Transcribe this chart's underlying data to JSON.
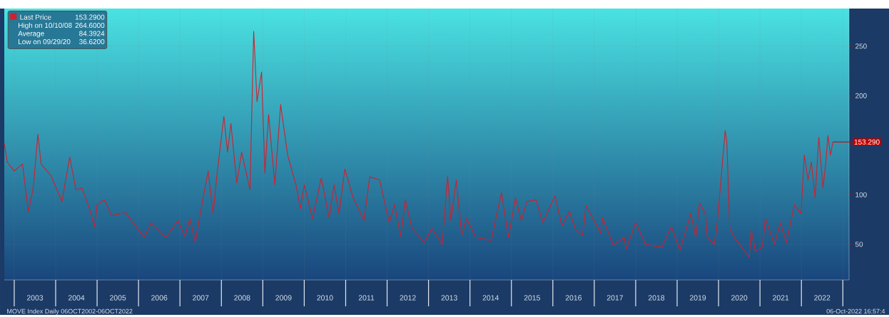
{
  "chart_data": {
    "type": "line",
    "series": [
      {
        "name": "Last Price",
        "color": "#d0202e",
        "x": [
          2002.76,
          2002.83,
          2003.0,
          2003.2,
          2003.34,
          2003.46,
          2003.57,
          2003.65,
          2003.89,
          2004.15,
          2004.34,
          2004.49,
          2004.63,
          2004.8,
          2004.94,
          2005.0,
          2005.18,
          2005.35,
          2005.69,
          2005.97,
          2006.14,
          2006.31,
          2006.66,
          2006.95,
          2007.12,
          2007.24,
          2007.37,
          2007.49,
          2007.68,
          2007.8,
          2007.89,
          2008.06,
          2008.15,
          2008.23,
          2008.37,
          2008.49,
          2008.69,
          2008.78,
          2008.86,
          2008.97,
          2009.05,
          2009.14,
          2009.29,
          2009.43,
          2009.6,
          2009.8,
          2009.91,
          2010.0,
          2010.2,
          2010.41,
          2010.6,
          2010.72,
          2010.84,
          2010.98,
          2011.18,
          2011.44,
          2011.58,
          2011.82,
          2012.05,
          2012.18,
          2012.33,
          2012.44,
          2012.6,
          2012.9,
          2013.08,
          2013.33,
          2013.46,
          2013.54,
          2013.67,
          2013.8,
          2013.92,
          2014.14,
          2014.51,
          2014.76,
          2014.93,
          2015.1,
          2015.24,
          2015.37,
          2015.59,
          2015.76,
          2016.05,
          2016.22,
          2016.4,
          2016.55,
          2016.72,
          2016.8,
          2016.97,
          2017.16,
          2017.2,
          2017.46,
          2017.72,
          2017.77,
          2018.0,
          2018.24,
          2018.63,
          2018.86,
          2019.07,
          2019.33,
          2019.45,
          2019.54,
          2019.68,
          2019.73,
          2019.9,
          2019.97,
          2020.16,
          2020.2,
          2020.27,
          2020.38,
          2020.74,
          2020.79,
          2020.89,
          2021.06,
          2021.13,
          2021.35,
          2021.49,
          2021.64,
          2021.83,
          2021.99,
          2022.07,
          2022.16,
          2022.24,
          2022.33,
          2022.42,
          2022.52,
          2022.59,
          2022.64,
          2022.7,
          2022.76
        ],
        "values": [
          152,
          133,
          124,
          131,
          83,
          107,
          161,
          131,
          119,
          93,
          138,
          105,
          107,
          88,
          68,
          90,
          95,
          79,
          82,
          66,
          57,
          72,
          57,
          74,
          58,
          76,
          52,
          81,
          124,
          81,
          119,
          179,
          143,
          172,
          112,
          143,
          105,
          265,
          194,
          224,
          122,
          181,
          110,
          191,
          140,
          110,
          86,
          110,
          76,
          117,
          77,
          110,
          81,
          126,
          97,
          74,
          118,
          115,
          72,
          90,
          58,
          95,
          66,
          52,
          66,
          50,
          119,
          74,
          115,
          59,
          76,
          57,
          54,
          102,
          57,
          97,
          74,
          93,
          95,
          72,
          99,
          69,
          83,
          65,
          59,
          89,
          76,
          61,
          77,
          49,
          57,
          45,
          72,
          50,
          47,
          68,
          44,
          81,
          57,
          92,
          81,
          57,
          50,
          72,
          165,
          153,
          66,
          57,
          37,
          64,
          43,
          47,
          76,
          50,
          72,
          52,
          90,
          81,
          140,
          115,
          133,
          97,
          158,
          107,
          133,
          160,
          140,
          153.29
        ]
      }
    ],
    "xlim": [
      2002.76,
      2023.15
    ],
    "xticks": [
      {
        "value": 2003,
        "label": null
      },
      {
        "value": 2003.5,
        "label": "2003"
      },
      {
        "value": 2004,
        "label": null
      },
      {
        "value": 2004.5,
        "label": "2004"
      },
      {
        "value": 2005,
        "label": null
      },
      {
        "value": 2005.5,
        "label": "2005"
      },
      {
        "value": 2006,
        "label": null
      },
      {
        "value": 2006.5,
        "label": "2006"
      },
      {
        "value": 2007,
        "label": null
      },
      {
        "value": 2007.5,
        "label": "2007"
      },
      {
        "value": 2008,
        "label": null
      },
      {
        "value": 2008.5,
        "label": "2008"
      },
      {
        "value": 2009,
        "label": null
      },
      {
        "value": 2009.5,
        "label": "2009"
      },
      {
        "value": 2010,
        "label": null
      },
      {
        "value": 2010.5,
        "label": "2010"
      },
      {
        "value": 2011,
        "label": null
      },
      {
        "value": 2011.5,
        "label": "2011"
      },
      {
        "value": 2012,
        "label": null
      },
      {
        "value": 2012.5,
        "label": "2012"
      },
      {
        "value": 2013,
        "label": null
      },
      {
        "value": 2013.5,
        "label": "2013"
      },
      {
        "value": 2014,
        "label": null
      },
      {
        "value": 2014.5,
        "label": "2014"
      },
      {
        "value": 2015,
        "label": null
      },
      {
        "value": 2015.5,
        "label": "2015"
      },
      {
        "value": 2016,
        "label": null
      },
      {
        "value": 2016.5,
        "label": "2016"
      },
      {
        "value": 2017,
        "label": null
      },
      {
        "value": 2017.5,
        "label": "2017"
      },
      {
        "value": 2018,
        "label": null
      },
      {
        "value": 2018.5,
        "label": "2018"
      },
      {
        "value": 2019,
        "label": null
      },
      {
        "value": 2019.5,
        "label": "2019"
      },
      {
        "value": 2020,
        "label": null
      },
      {
        "value": 2020.5,
        "label": "2020"
      },
      {
        "value": 2021,
        "label": null
      },
      {
        "value": 2021.5,
        "label": "2021"
      },
      {
        "value": 2022,
        "label": null
      },
      {
        "value": 2022.5,
        "label": "2022"
      },
      {
        "value": 2023,
        "label": null
      }
    ],
    "ylim": [
      14,
      288
    ],
    "yticks": [
      50,
      100,
      {
        "value": 150,
        "label": null
      },
      200,
      250
    ],
    "grid": true,
    "legend": "top left",
    "annotations": [
      "153.2900",
      "High on 10/10/08",
      "264.6000",
      "Average",
      "84.3924",
      "Low on 09/29/20",
      "36.6200",
      {
        "text": "153.290",
        "x": 2022.76,
        "y": 153.29
      },
      "MOVE Index Daily 06OCT2002-06OCT2022",
      "06-Oct-2022 16:57:4"
    ]
  }
}
